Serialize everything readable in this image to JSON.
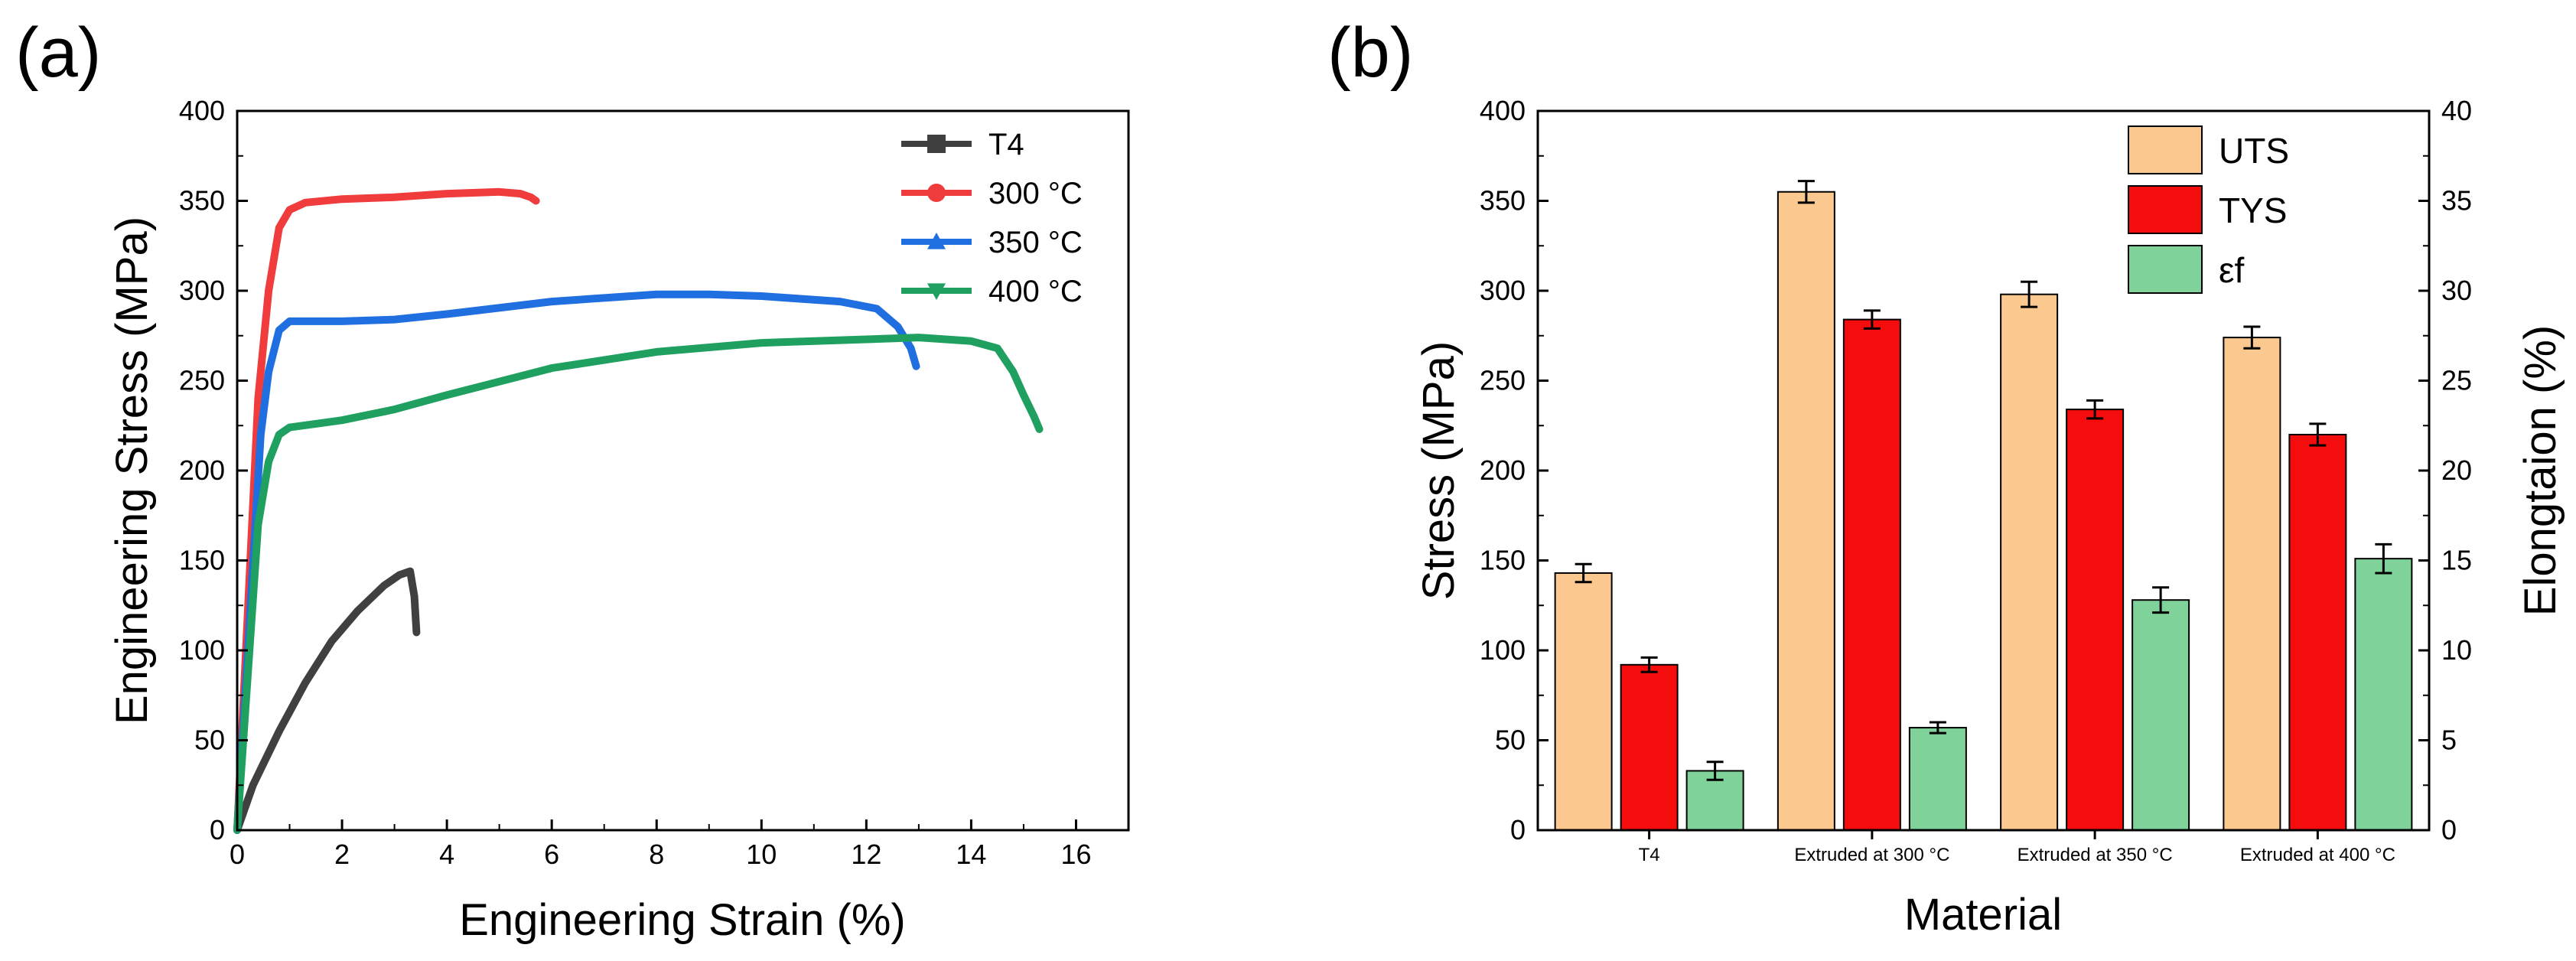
{
  "panels": [
    {
      "label": "(a)"
    },
    {
      "label": "(b)"
    }
  ],
  "chart_data": [
    {
      "type": "line",
      "xlabel": "Engineering Strain (%)",
      "ylabel": "Engineering Stress (MPa)",
      "xlim": [
        0,
        17
      ],
      "ylim": [
        0,
        400
      ],
      "xticks": [
        0,
        2,
        4,
        6,
        8,
        10,
        12,
        14,
        16
      ],
      "yticks": [
        0,
        50,
        100,
        150,
        200,
        250,
        300,
        350,
        400
      ],
      "grid": false,
      "legend_position": "top-right",
      "series": [
        {
          "name": "T4",
          "color": "#404040",
          "marker": "square",
          "x": [
            0,
            0.3,
            0.8,
            1.3,
            1.8,
            2.3,
            2.8,
            3.1,
            3.3,
            3.38,
            3.42
          ],
          "y": [
            0,
            25,
            55,
            82,
            105,
            122,
            136,
            142,
            144,
            130,
            110
          ]
        },
        {
          "name": "300 °C",
          "color": "#f03c3c",
          "marker": "circle",
          "x": [
            0,
            0.4,
            0.6,
            0.8,
            1.0,
            1.3,
            2.0,
            3.0,
            4.0,
            5.0,
            5.4,
            5.6,
            5.7
          ],
          "y": [
            0,
            240,
            300,
            335,
            345,
            349,
            351,
            352,
            354,
            355,
            354,
            352,
            350
          ]
        },
        {
          "name": "350 °C",
          "color": "#1f6fe0",
          "marker": "triangle",
          "x": [
            0,
            0.45,
            0.6,
            0.8,
            1.0,
            2.0,
            3.0,
            4.0,
            6.0,
            8.0,
            9.0,
            10.0,
            11.5,
            12.2,
            12.6,
            12.85,
            12.95
          ],
          "y": [
            0,
            220,
            255,
            278,
            283,
            283,
            284,
            287,
            294,
            298,
            298,
            297,
            294,
            290,
            280,
            268,
            258
          ]
        },
        {
          "name": "400 °C",
          "color": "#1fa060",
          "marker": "triangle-down",
          "x": [
            0,
            0.4,
            0.6,
            0.8,
            1.0,
            1.5,
            2.0,
            3.0,
            4.0,
            6.0,
            8.0,
            10.0,
            12.0,
            13.0,
            14.0,
            14.5,
            14.8,
            15.0,
            15.2,
            15.3
          ],
          "y": [
            0,
            170,
            205,
            220,
            224,
            226,
            228,
            234,
            242,
            257,
            266,
            271,
            273,
            274,
            272,
            268,
            255,
            242,
            230,
            223
          ]
        }
      ]
    },
    {
      "type": "bar",
      "xlabel": "Material",
      "ylabel": "Stress (MPa)",
      "y2label": "Elongtaion (%)",
      "categories": [
        "T4",
        "Extruded at 300 °C",
        "Extruded at 350 °C",
        "Extruded at 400 °C"
      ],
      "ylim": [
        0,
        400
      ],
      "y2lim": [
        0,
        40
      ],
      "yticks": [
        0,
        50,
        100,
        150,
        200,
        250,
        300,
        350,
        400
      ],
      "y2ticks": [
        0,
        5,
        10,
        15,
        20,
        25,
        30,
        35,
        40
      ],
      "grid": false,
      "legend_position": "top-right",
      "series": [
        {
          "name": "UTS",
          "axis": "left",
          "color": "#fbc98f",
          "values": [
            143,
            355,
            298,
            274
          ],
          "errors": [
            5,
            6,
            7,
            6
          ]
        },
        {
          "name": "TYS",
          "axis": "left",
          "color": "#f50c0c",
          "values": [
            92,
            284,
            234,
            220
          ],
          "errors": [
            4,
            5,
            5,
            6
          ]
        },
        {
          "name": "εf",
          "axis": "right",
          "color": "#7fd39a",
          "values": [
            3.3,
            5.7,
            12.8,
            15.1
          ],
          "errors": [
            0.5,
            0.3,
            0.7,
            0.8
          ]
        }
      ]
    }
  ]
}
